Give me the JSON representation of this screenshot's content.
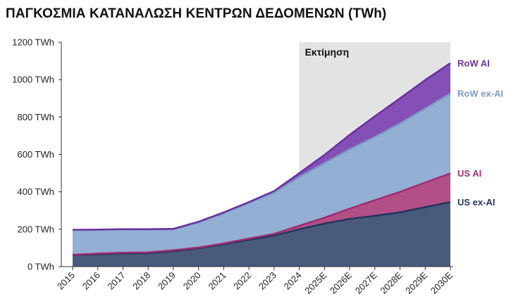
{
  "chart_data": {
    "type": "area",
    "stacked": true,
    "title": "ΠΑΓΚΟΣΜΙΑ ΚΑΤΑΝΑΛΩΣΗ ΚΕΝΤΡΩΝ ΔΕΔΟΜΕΝΩΝ (TWh)",
    "categories": [
      "2015",
      "2016",
      "2017",
      "2018",
      "2019",
      "2020",
      "2021",
      "2022",
      "2023",
      "2024",
      "2025E",
      "2026E",
      "2027E",
      "2028E",
      "2029E",
      "2030E"
    ],
    "ylim": [
      0,
      1200
    ],
    "yticks": [
      0,
      200,
      400,
      600,
      800,
      1000,
      1200
    ],
    "ytick_labels": [
      "0 TWh",
      "200 TWh",
      "400 TWh",
      "600 TWh",
      "800 TWh",
      "1000 TWh",
      "1200 TWh"
    ],
    "estimate_region": {
      "label": "Εκτίμηση",
      "from": "2024",
      "to": "2030E"
    },
    "series": [
      {
        "name": "US ex-AI",
        "color": "#24355e",
        "fill": "#4a5a7d",
        "cumulative": [
          62,
          66,
          70,
          72,
          82,
          98,
          120,
          143,
          165,
          200,
          230,
          255,
          272,
          290,
          318,
          345
        ]
      },
      {
        "name": "US AI",
        "color": "#a02c74",
        "fill": "#b24f87",
        "cumulative": [
          64,
          70,
          75,
          76,
          88,
          102,
          124,
          150,
          175,
          218,
          262,
          310,
          355,
          400,
          450,
          498
        ]
      },
      {
        "name": "RoW ex-AI",
        "color": "#7b9cc7",
        "fill": "#93b0d4",
        "cumulative": [
          194,
          196,
          197,
          197,
          198,
          236,
          285,
          340,
          395,
          478,
          553,
          627,
          693,
          765,
          845,
          925
        ]
      },
      {
        "name": "RoW AI",
        "color": "#6a2f9e",
        "fill": "#8450b6",
        "cumulative": [
          197,
          198,
          200,
          200,
          202,
          240,
          290,
          345,
          404,
          500,
          597,
          705,
          804,
          900,
          998,
          1088
        ]
      }
    ]
  }
}
